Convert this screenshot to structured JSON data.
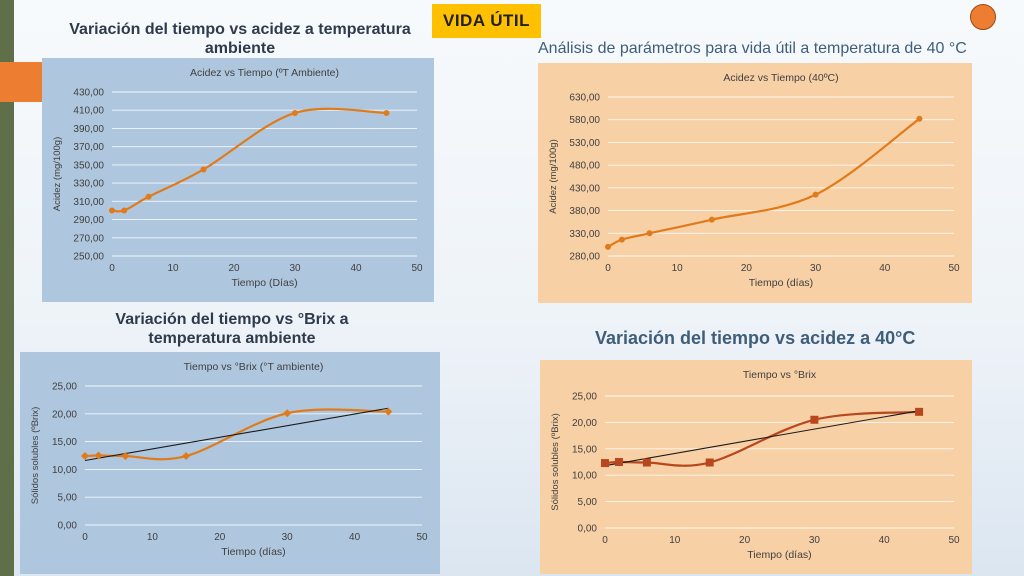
{
  "badge": "VIDA ÚTIL",
  "headings": {
    "top_left": "Variación del tiempo vs acidez a temperatura ambiente",
    "top_right": "Análisis de parámetros para vida útil a temperatura de 40 °C",
    "bottom_left": "Variación del tiempo vs °Brix a temperatura ambiente",
    "bottom_right": "Variación del tiempo vs acidez a 40°C"
  },
  "colors": {
    "blue_panel": "#afc7de",
    "peach_panel": "#f8d0a6",
    "orange_series": "#e07b1c",
    "dark_orange_series": "#b8471e",
    "trendline": "#1a1a1a",
    "gridline": "#ffffff",
    "badge": "#ffc000"
  },
  "chart_data": [
    {
      "type": "line",
      "title": "Acidez vs Tiempo (ºT Ambiente)",
      "xlabel": "Tiempo (Días)",
      "ylabel": "Acidez (mg/100g)",
      "x": [
        0,
        2,
        6,
        15,
        30,
        45
      ],
      "series": [
        {
          "values": [
            300,
            300,
            315,
            345,
            407,
            407
          ]
        }
      ],
      "xlim": [
        0,
        50
      ],
      "ylim": [
        250,
        430
      ],
      "xticks": [
        "0",
        "10",
        "20",
        "30",
        "40",
        "50"
      ],
      "yticks": [
        "250,00",
        "270,00",
        "290,00",
        "310,00",
        "330,00",
        "350,00",
        "370,00",
        "390,00",
        "410,00",
        "430,00"
      ],
      "marker": "circle",
      "smooth": true,
      "trendline": false,
      "grid": true
    },
    {
      "type": "line",
      "title": "Acidez vs Tiempo (40ºC)",
      "xlabel": "Tiempo (días)",
      "ylabel": "Acidez (mg/100g)",
      "x": [
        0,
        2,
        6,
        15,
        30,
        45
      ],
      "series": [
        {
          "values": [
            300,
            316,
            330,
            360,
            415,
            582
          ]
        }
      ],
      "xlim": [
        0,
        50
      ],
      "ylim": [
        280,
        630
      ],
      "xticks": [
        "0",
        "10",
        "20",
        "30",
        "40",
        "50"
      ],
      "yticks": [
        "280,00",
        "330,00",
        "380,00",
        "430,00",
        "480,00",
        "530,00",
        "580,00",
        "630,00"
      ],
      "marker": "circle",
      "smooth": true,
      "trendline": false,
      "grid": true
    },
    {
      "type": "line",
      "title": "Tiempo vs °Brix (°T ambiente)",
      "xlabel": "Tiempo (días)",
      "ylabel": "Sólidos solubles (ºBrix)",
      "x": [
        0,
        2,
        6,
        15,
        30,
        45
      ],
      "series": [
        {
          "values": [
            12.4,
            12.5,
            12.4,
            12.4,
            20.1,
            20.4
          ]
        }
      ],
      "trend_endpoints": [
        11.6,
        21.0
      ],
      "xlim": [
        0,
        50
      ],
      "ylim": [
        0,
        25
      ],
      "xticks": [
        "0",
        "10",
        "20",
        "30",
        "40",
        "50"
      ],
      "yticks": [
        "0,00",
        "5,00",
        "10,00",
        "15,00",
        "20,00",
        "25,00"
      ],
      "marker": "diamond",
      "smooth": true,
      "trendline": true,
      "grid": true
    },
    {
      "type": "line",
      "title": "Tiempo vs °Brix",
      "xlabel": "Tiempo (días)",
      "ylabel": "Sólidos solubles (ºBrix)",
      "x": [
        0,
        2,
        6,
        15,
        30,
        45
      ],
      "series": [
        {
          "values": [
            12.3,
            12.5,
            12.4,
            12.4,
            20.5,
            22.0
          ]
        }
      ],
      "trend_endpoints": [
        11.8,
        22.2
      ],
      "xlim": [
        0,
        50
      ],
      "ylim": [
        0,
        25
      ],
      "xticks": [
        "0",
        "10",
        "20",
        "30",
        "40",
        "50"
      ],
      "yticks": [
        "0,00",
        "5,00",
        "10,00",
        "15,00",
        "20,00",
        "25,00"
      ],
      "marker": "square",
      "smooth": true,
      "trendline": true,
      "grid": true
    }
  ]
}
